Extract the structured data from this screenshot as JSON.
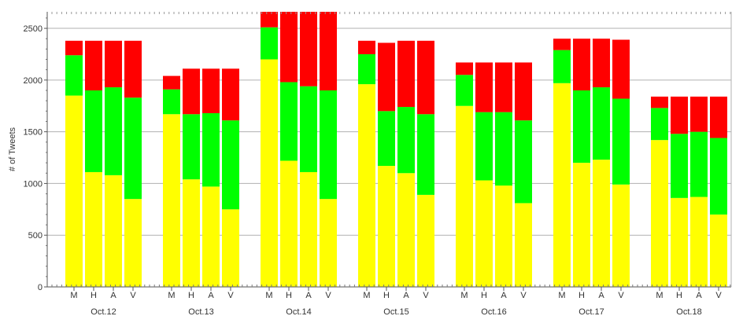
{
  "chart_data": {
    "type": "bar",
    "stacked": true,
    "ylabel": "# of Tweets",
    "ylim": [
      0,
      2660
    ],
    "yticks": [
      0,
      500,
      1000,
      1500,
      2000,
      2500
    ],
    "grid": "horizontal",
    "groups": [
      {
        "label": "Oct.12",
        "bars": [
          {
            "label": "M",
            "values": [
              1850,
              390,
              140
            ]
          },
          {
            "label": "H",
            "values": [
              1110,
              790,
              480
            ]
          },
          {
            "label": "A",
            "values": [
              1080,
              850,
              450
            ]
          },
          {
            "label": "V",
            "values": [
              850,
              980,
              550
            ]
          }
        ]
      },
      {
        "label": "Oct.13",
        "bars": [
          {
            "label": "M",
            "values": [
              1670,
              240,
              130
            ]
          },
          {
            "label": "H",
            "values": [
              1040,
              630,
              440
            ]
          },
          {
            "label": "A",
            "values": [
              970,
              710,
              430
            ]
          },
          {
            "label": "V",
            "values": [
              750,
              860,
              500
            ]
          }
        ]
      },
      {
        "label": "Oct.14",
        "bars": [
          {
            "label": "M",
            "values": [
              2200,
              310,
              150
            ]
          },
          {
            "label": "H",
            "values": [
              1220,
              760,
              680
            ]
          },
          {
            "label": "A",
            "values": [
              1110,
              830,
              720
            ]
          },
          {
            "label": "V",
            "values": [
              850,
              1050,
              760
            ]
          }
        ]
      },
      {
        "label": "Oct.15",
        "bars": [
          {
            "label": "M",
            "values": [
              1960,
              290,
              130
            ]
          },
          {
            "label": "H",
            "values": [
              1170,
              530,
              660
            ]
          },
          {
            "label": "A",
            "values": [
              1100,
              640,
              640
            ]
          },
          {
            "label": "V",
            "values": [
              890,
              780,
              710
            ]
          }
        ]
      },
      {
        "label": "Oct.16",
        "bars": [
          {
            "label": "M",
            "values": [
              1750,
              300,
              120
            ]
          },
          {
            "label": "H",
            "values": [
              1030,
              660,
              480
            ]
          },
          {
            "label": "A",
            "values": [
              980,
              710,
              480
            ]
          },
          {
            "label": "V",
            "values": [
              810,
              800,
              560
            ]
          }
        ]
      },
      {
        "label": "Oct.17",
        "bars": [
          {
            "label": "M",
            "values": [
              1970,
              320,
              110
            ]
          },
          {
            "label": "H",
            "values": [
              1200,
              700,
              500
            ]
          },
          {
            "label": "A",
            "values": [
              1230,
              700,
              470
            ]
          },
          {
            "label": "V",
            "values": [
              990,
              830,
              570
            ]
          }
        ]
      },
      {
        "label": "Oct.18",
        "bars": [
          {
            "label": "M",
            "values": [
              1420,
              310,
              110
            ]
          },
          {
            "label": "H",
            "values": [
              860,
              620,
              360
            ]
          },
          {
            "label": "A",
            "values": [
              870,
              630,
              340
            ]
          },
          {
            "label": "V",
            "values": [
              700,
              740,
              400
            ]
          }
        ]
      }
    ],
    "colors": [
      "#ffff00",
      "#00ff00",
      "#ff0000"
    ]
  }
}
